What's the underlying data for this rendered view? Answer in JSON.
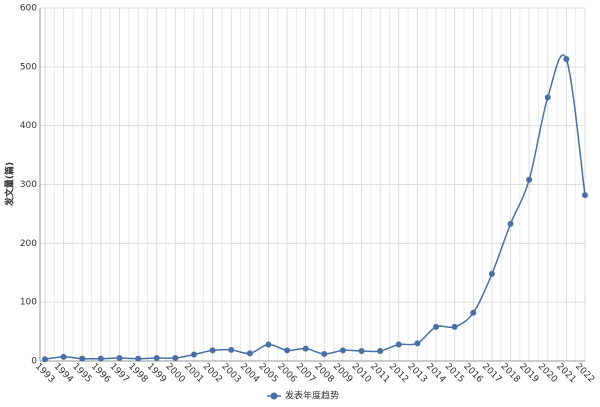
{
  "chart_data": {
    "type": "line",
    "y_label": "发文量(篇)",
    "categories": [
      "1993",
      "1994",
      "1995",
      "1996",
      "1997",
      "1998",
      "1999",
      "2000",
      "2001",
      "2002",
      "2003",
      "2004",
      "2005",
      "2006",
      "2007",
      "2008",
      "2009",
      "2010",
      "2011",
      "2012",
      "2013",
      "2014",
      "2015",
      "2016",
      "2017",
      "2018",
      "2019",
      "2020",
      "2021",
      "2022"
    ],
    "series": [
      {
        "name": "发表年度趋势",
        "color": "#4a6fa5",
        "values": [
          3,
          7,
          4,
          4,
          5,
          4,
          5,
          5,
          11,
          18,
          19,
          13,
          28,
          18,
          21,
          12,
          18,
          17,
          17,
          28,
          30,
          58,
          58,
          82,
          148,
          233,
          308,
          448,
          513,
          282
        ]
      }
    ],
    "ylim": [
      0,
      600
    ],
    "yticks": [
      0,
      100,
      200,
      300,
      400,
      500,
      600
    ],
    "grid": true,
    "legend": "bottom"
  }
}
